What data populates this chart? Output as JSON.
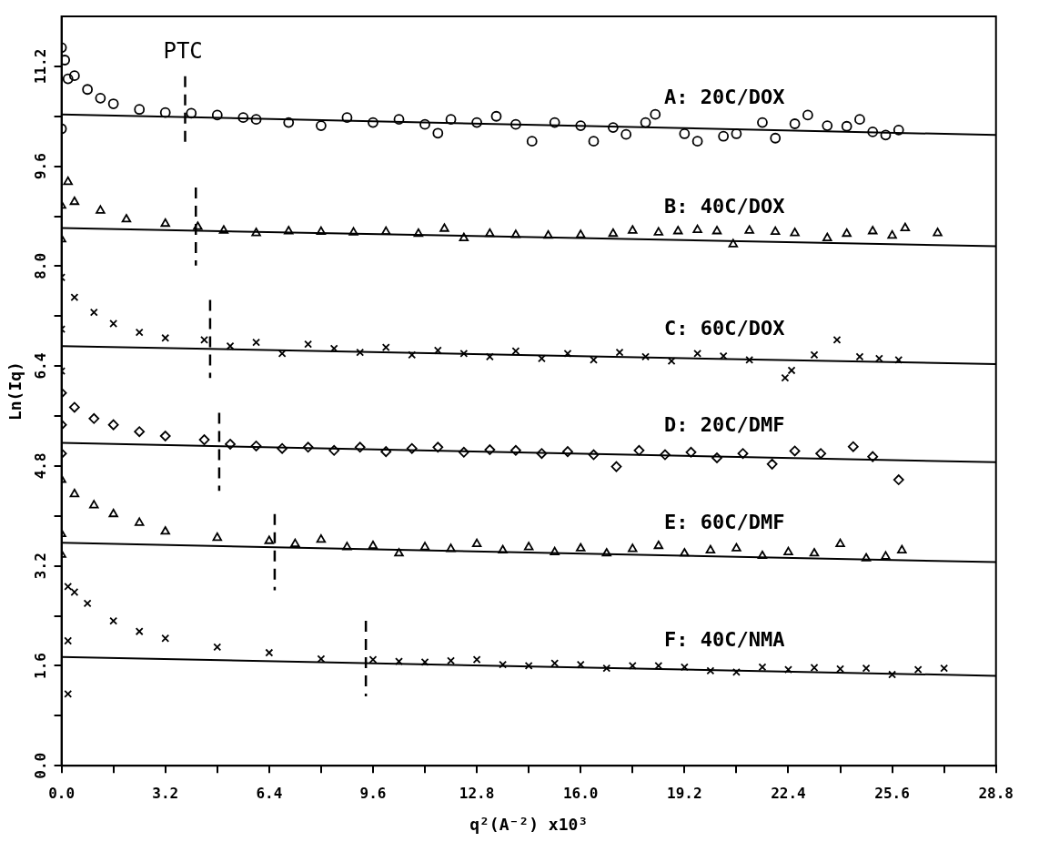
{
  "chart_data": {
    "type": "scatter",
    "xlabel": "q²(A⁻²) x10³",
    "ylabel": "Ln(Iq)",
    "xlim": [
      0,
      28.8
    ],
    "ylim": [
      0,
      12.0
    ],
    "xticks": [
      {
        "value": 0,
        "label": "0.0"
      },
      {
        "value": 1.6,
        "label": null
      },
      3.2,
      {
        "value": 4.8,
        "label": null
      },
      6.4,
      {
        "value": 8.0,
        "label": null
      },
      9.6,
      {
        "value": 11.2,
        "label": null
      },
      12.8,
      {
        "value": 14.4,
        "label": null
      },
      {
        "value": 16,
        "label": "16.0"
      },
      {
        "value": 17.6,
        "label": null
      },
      19.2,
      {
        "value": 20.8,
        "label": null
      },
      22.4,
      {
        "value": 24.0,
        "label": null
      },
      25.6,
      {
        "value": 27.2,
        "label": null
      },
      28.8
    ],
    "yticks": [
      {
        "value": 0,
        "label": "0.0"
      },
      {
        "value": 0.8,
        "label": null
      },
      1.6,
      {
        "value": 2.4,
        "label": null
      },
      3.2,
      {
        "value": 4.0,
        "label": null
      },
      4.8,
      {
        "value": 5.6,
        "label": null
      },
      6.4,
      {
        "value": 7.2,
        "label": null
      },
      {
        "value": 8,
        "label": "8.0"
      },
      {
        "value": 8.8,
        "label": null
      },
      9.6,
      {
        "value": 10.4,
        "label": null
      },
      11.2
    ],
    "grid": false,
    "legend": false,
    "annotations": [
      "PTC"
    ],
    "series": [
      {
        "name": "A: 20C/DOX",
        "type": "scatter",
        "marker": "circle",
        "color": "#000000",
        "x": [
          0,
          0,
          0.1,
          0.2,
          0.4,
          0.8,
          1.2,
          1.6,
          2.4,
          3.2,
          4.0,
          4.8,
          5.6,
          6.0,
          7.0,
          8.0,
          8.8,
          9.6,
          10.4,
          11.2,
          11.6,
          12.0,
          12.8,
          13.4,
          14.0,
          14.5,
          15.2,
          16.0,
          16.4,
          17.0,
          17.4,
          18.0,
          18.3,
          19.2,
          19.6,
          20.4,
          20.8,
          21.6,
          22.0,
          22.6,
          23.0,
          23.6,
          24.2,
          24.6,
          25.0,
          25.4,
          25.8
        ],
        "values": [
          11.5,
          10.2,
          11.3,
          11.0,
          11.05,
          10.83,
          10.69,
          10.6,
          10.51,
          10.46,
          10.45,
          10.42,
          10.38,
          10.35,
          10.3,
          10.25,
          10.38,
          10.3,
          10.35,
          10.27,
          10.13,
          10.35,
          10.3,
          10.4,
          10.27,
          10.0,
          10.3,
          10.25,
          10.0,
          10.22,
          10.11,
          10.3,
          10.43,
          10.12,
          10.0,
          10.08,
          10.12,
          10.3,
          10.05,
          10.28,
          10.42,
          10.25,
          10.24,
          10.35,
          10.15,
          10.1,
          10.18
        ]
      },
      {
        "name": "B: 40C/DOX",
        "type": "scatter",
        "marker": "triangle",
        "color": "#000000",
        "x": [
          0,
          0,
          0.2,
          0.4,
          1.2,
          2.0,
          3.2,
          4.2,
          5,
          6,
          7,
          8,
          9,
          10,
          11,
          11.8,
          12.4,
          13.2,
          14,
          15,
          16,
          17,
          17.6,
          18.4,
          19,
          19.6,
          20.2,
          20.7,
          21.2,
          22,
          22.6,
          23.6,
          24.2,
          25,
          25.6,
          26,
          27
        ],
        "values": [
          8.43,
          8.97,
          9.35,
          9.03,
          8.89,
          8.75,
          8.68,
          8.63,
          8.57,
          8.53,
          8.56,
          8.55,
          8.54,
          8.55,
          8.52,
          8.6,
          8.45,
          8.52,
          8.5,
          8.49,
          8.5,
          8.52,
          8.57,
          8.54,
          8.56,
          8.58,
          8.56,
          8.35,
          8.57,
          8.55,
          8.53,
          8.45,
          8.52,
          8.56,
          8.49,
          8.61,
          8.53
        ]
      },
      {
        "name": "C: 60C/DOX",
        "type": "scatter",
        "marker": "cross",
        "color": "#000000",
        "x": [
          0,
          0,
          0,
          0.4,
          1,
          1.6,
          2.4,
          3.2,
          4.4,
          5.2,
          6,
          6.8,
          7.6,
          8.4,
          9.2,
          10,
          10.8,
          11.6,
          12.4,
          13.2,
          14,
          14.8,
          15.6,
          16.4,
          17.2,
          18,
          18.8,
          19.6,
          20.4,
          21.2,
          22.3,
          22.5,
          23.2,
          23.9,
          24.6,
          25.2,
          25.8
        ],
        "values": [
          7.82,
          6.99,
          6.32,
          7.5,
          7.26,
          7.08,
          6.94,
          6.85,
          6.82,
          6.72,
          6.78,
          6.6,
          6.75,
          6.68,
          6.62,
          6.7,
          6.58,
          6.65,
          6.6,
          6.55,
          6.64,
          6.52,
          6.6,
          6.5,
          6.62,
          6.55,
          6.48,
          6.6,
          6.56,
          6.5,
          6.21,
          6.33,
          6.58,
          6.82,
          6.55,
          6.52,
          6.5
        ]
      },
      {
        "name": "D: 20C/DMF",
        "type": "scatter",
        "marker": "diamond",
        "color": "#000000",
        "x": [
          0,
          0,
          0,
          0.4,
          1,
          1.6,
          2.4,
          3.2,
          4.4,
          5.2,
          6,
          6.8,
          7.6,
          8.4,
          9.2,
          10,
          10.8,
          11.6,
          12.4,
          13.2,
          14,
          14.8,
          15.6,
          16.4,
          17.1,
          17.8,
          18.6,
          19.4,
          20.2,
          21,
          21.9,
          22.6,
          23.4,
          24.4,
          25,
          25.8
        ],
        "values": [
          5.97,
          5.46,
          5.0,
          5.74,
          5.56,
          5.46,
          5.35,
          5.28,
          5.22,
          5.15,
          5.12,
          5.08,
          5.1,
          5.05,
          5.1,
          5.03,
          5.08,
          5.1,
          5.02,
          5.06,
          5.05,
          5.0,
          5.03,
          4.98,
          4.79,
          5.05,
          4.98,
          5.02,
          4.93,
          5.0,
          4.83,
          5.04,
          5.0,
          5.11,
          4.95,
          4.58
        ]
      },
      {
        "name": "E: 60C/DMF",
        "type": "scatter",
        "marker": "triangle",
        "color": "#000000",
        "x": [
          0,
          0,
          0,
          0.4,
          1,
          1.6,
          2.4,
          3.2,
          4.8,
          6.4,
          7.2,
          8,
          8.8,
          9.6,
          10.4,
          11.2,
          12,
          12.8,
          13.6,
          14.4,
          15.2,
          16,
          16.8,
          17.6,
          18.4,
          19.2,
          20,
          20.8,
          21.6,
          22.4,
          23.2,
          24,
          24.8,
          25.4,
          25.9
        ],
        "values": [
          4.58,
          3.71,
          3.38,
          4.35,
          4.17,
          4.03,
          3.89,
          3.75,
          3.65,
          3.6,
          3.55,
          3.62,
          3.5,
          3.52,
          3.4,
          3.5,
          3.47,
          3.55,
          3.45,
          3.5,
          3.42,
          3.48,
          3.4,
          3.47,
          3.52,
          3.4,
          3.45,
          3.48,
          3.36,
          3.42,
          3.4,
          3.55,
          3.32,
          3.35,
          3.45
        ]
      },
      {
        "name": "F: 40C/NMA",
        "type": "scatter",
        "marker": "cross",
        "color": "#000000",
        "x": [
          0.2,
          0.2,
          0.2,
          0.4,
          0.8,
          1.6,
          2.4,
          3.2,
          4.8,
          6.4,
          8,
          9.6,
          10.4,
          11.2,
          12,
          12.8,
          13.6,
          14.4,
          15.2,
          16,
          16.8,
          17.6,
          18.4,
          19.2,
          20,
          20.8,
          21.6,
          22.4,
          23.2,
          24,
          24.8,
          25.6,
          26.4,
          27.2
        ],
        "values": [
          2.87,
          2.0,
          1.15,
          2.78,
          2.6,
          2.32,
          2.15,
          2.04,
          1.9,
          1.81,
          1.71,
          1.7,
          1.67,
          1.66,
          1.68,
          1.7,
          1.62,
          1.6,
          1.64,
          1.62,
          1.56,
          1.6,
          1.6,
          1.58,
          1.52,
          1.5,
          1.58,
          1.54,
          1.57,
          1.55,
          1.56,
          1.46,
          1.54,
          1.56
        ]
      },
      {
        "type": "line",
        "color": "#000000",
        "line_style": "solid",
        "marker": "none",
        "x": [
          0,
          28.8
        ],
        "values": [
          10.43,
          10.1
        ]
      },
      {
        "type": "line",
        "color": "#000000",
        "line_style": "solid",
        "marker": "none",
        "x": [
          0,
          28.8
        ],
        "values": [
          8.61,
          8.32
        ]
      },
      {
        "type": "line",
        "color": "#000000",
        "line_style": "solid",
        "marker": "none",
        "x": [
          0,
          28.8
        ],
        "values": [
          6.72,
          6.43
        ]
      },
      {
        "type": "line",
        "color": "#000000",
        "line_style": "solid",
        "marker": "none",
        "x": [
          0,
          28.8
        ],
        "values": [
          5.17,
          4.86
        ]
      },
      {
        "type": "line",
        "color": "#000000",
        "line_style": "solid",
        "marker": "none",
        "x": [
          0,
          28.8
        ],
        "values": [
          3.57,
          3.26
        ]
      },
      {
        "type": "line",
        "color": "#000000",
        "line_style": "solid",
        "marker": "none",
        "x": [
          0,
          28.8
        ],
        "values": [
          1.74,
          1.44
        ]
      },
      {
        "type": "line",
        "color": "#000000",
        "line_style": "dashed",
        "marker": "none",
        "x": [
          3.81,
          3.81
        ],
        "values": [
          11.04,
          9.93
        ]
      },
      {
        "type": "line",
        "color": "#000000",
        "line_style": "dashed",
        "marker": "none",
        "x": [
          4.14,
          4.14
        ],
        "values": [
          9.26,
          8.01
        ]
      },
      {
        "type": "line",
        "color": "#000000",
        "line_style": "dashed",
        "marker": "none",
        "x": [
          4.58,
          4.58
        ],
        "values": [
          7.46,
          6.21
        ]
      },
      {
        "type": "line",
        "color": "#000000",
        "line_style": "dashed",
        "marker": "none",
        "x": [
          4.86,
          4.86
        ],
        "values": [
          5.65,
          4.4
        ]
      },
      {
        "type": "line",
        "color": "#000000",
        "line_style": "dashed",
        "marker": "none",
        "x": [
          6.57,
          6.57
        ],
        "values": [
          4.03,
          2.81
        ]
      },
      {
        "type": "line",
        "color": "#000000",
        "line_style": "dashed",
        "marker": "none",
        "x": [
          9.38,
          9.38
        ],
        "values": [
          2.32,
          1.11
        ]
      }
    ]
  }
}
